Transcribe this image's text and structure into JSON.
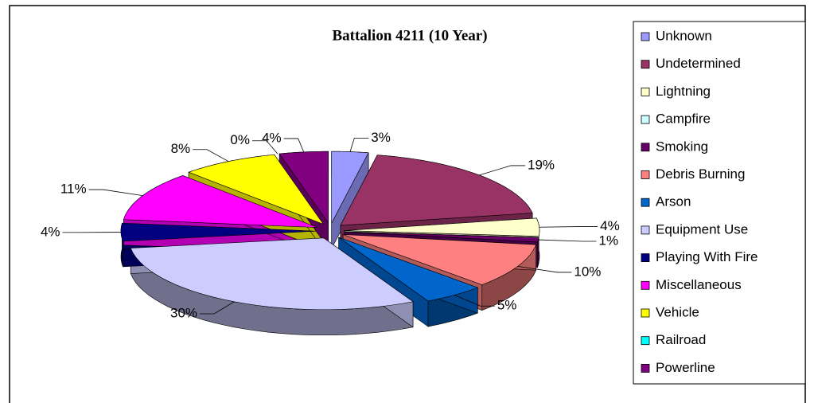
{
  "chart_data": {
    "type": "pie3d",
    "title": "Battalion 4211 (10 Year)",
    "categories": [
      "Unknown",
      "Undetermined",
      "Lightning",
      "Campfire",
      "Smoking",
      "Debris Burning",
      "Arson",
      "Equipment Use",
      "Playing With Fire",
      "Miscellaneous",
      "Vehicle",
      "Railroad",
      "Powerline"
    ],
    "values": [
      3,
      19,
      4,
      0,
      1,
      10,
      5,
      30,
      4,
      11,
      8,
      0,
      4
    ],
    "value_labels": [
      "3%",
      "19%",
      "4%",
      null,
      "1%",
      "10%",
      "5%",
      "30%",
      "4%",
      "11%",
      "8%",
      "0%",
      "4%"
    ],
    "colors": [
      "#9999ff",
      "#993366",
      "#ffffcc",
      "#ccffff",
      "#660066",
      "#ff8080",
      "#0066cc",
      "#ccccff",
      "#000080",
      "#ff00ff",
      "#ffff00",
      "#00ffff",
      "#800080"
    ],
    "legend": "right"
  }
}
